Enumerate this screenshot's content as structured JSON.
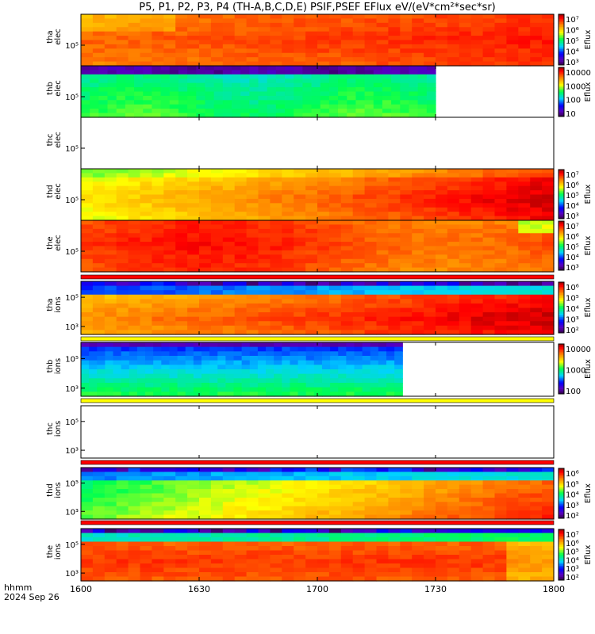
{
  "chart_data": {
    "type": "heatmap",
    "title": "P5, P1, P2, P3, P4 (TH-A,B,C,D,E) PSIF,PSEF EFlux eV/(eV*cm²*sec*sr)",
    "x_axis": {
      "ticks": [
        "1600",
        "1630",
        "1700",
        "1730",
        "1800"
      ],
      "corner_label_line1": "hhmm",
      "corner_label_line2": "2024 Sep 26"
    },
    "colorbar_label": "Eflux",
    "panels": [
      {
        "probe": "tha",
        "species": "elec",
        "y_tick": "10⁵",
        "has_data": true,
        "colorbar_ticks": [
          "10⁷",
          "10⁶",
          "10⁵",
          "10⁴",
          "10³"
        ],
        "colorbar_scale": "rainbow",
        "coverage_end": 1.0
      },
      {
        "probe": "thb",
        "species": "elec",
        "y_tick": "10⁵",
        "has_data": true,
        "colorbar_ticks": [
          "10000",
          "1000",
          "100",
          "10"
        ],
        "colorbar_scale": "rainbow",
        "coverage_end": 0.75
      },
      {
        "probe": "thc",
        "species": "elec",
        "y_tick": "10⁵",
        "has_data": false,
        "colorbar_ticks": [],
        "coverage_end": 0.0
      },
      {
        "probe": "thd",
        "species": "elec",
        "y_tick": "10⁵",
        "has_data": true,
        "colorbar_ticks": [
          "10⁷",
          "10⁶",
          "10⁵",
          "10⁴",
          "10³"
        ],
        "colorbar_scale": "rainbow",
        "coverage_end": 1.0
      },
      {
        "probe": "the",
        "species": "elec",
        "y_tick": "10⁵",
        "has_data": true,
        "colorbar_ticks": [
          "10⁷",
          "10⁶",
          "10⁵",
          "10⁴",
          "10³"
        ],
        "colorbar_scale": "rainbow",
        "coverage_end": 1.0
      },
      {
        "probe": "tha",
        "species": "ions",
        "y_tick_upper": "10⁵",
        "y_tick_lower": "10³",
        "has_data": true,
        "colorbar_ticks": [
          "10⁶",
          "10⁵",
          "10⁴",
          "10³",
          "10²"
        ],
        "colorbar_scale": "rainbow",
        "coverage_end": 1.0
      },
      {
        "probe": "thb",
        "species": "ions",
        "y_tick_upper": "10⁵",
        "y_tick_lower": "10³",
        "has_data": true,
        "colorbar_ticks": [
          "10000",
          "1000",
          "100"
        ],
        "colorbar_scale": "rainbow",
        "coverage_end": 0.68
      },
      {
        "probe": "thc",
        "species": "ions",
        "y_tick_upper": "10⁵",
        "y_tick_lower": "10³",
        "has_data": false,
        "colorbar_ticks": [],
        "coverage_end": 0.0
      },
      {
        "probe": "thd",
        "species": "ions",
        "y_tick_upper": "10⁵",
        "y_tick_lower": "10³",
        "has_data": true,
        "colorbar_ticks": [
          "10⁶",
          "10⁵",
          "10⁴",
          "10³",
          "10²"
        ],
        "colorbar_scale": "rainbow",
        "coverage_end": 1.0
      },
      {
        "probe": "the",
        "species": "ions",
        "y_tick_upper": "10⁵",
        "y_tick_lower": "10³",
        "has_data": true,
        "colorbar_ticks": [
          "10⁷",
          "10⁶",
          "10⁵",
          "10⁴",
          "10³",
          "10²"
        ],
        "colorbar_scale": "rainbow",
        "coverage_end": 1.0
      }
    ]
  }
}
